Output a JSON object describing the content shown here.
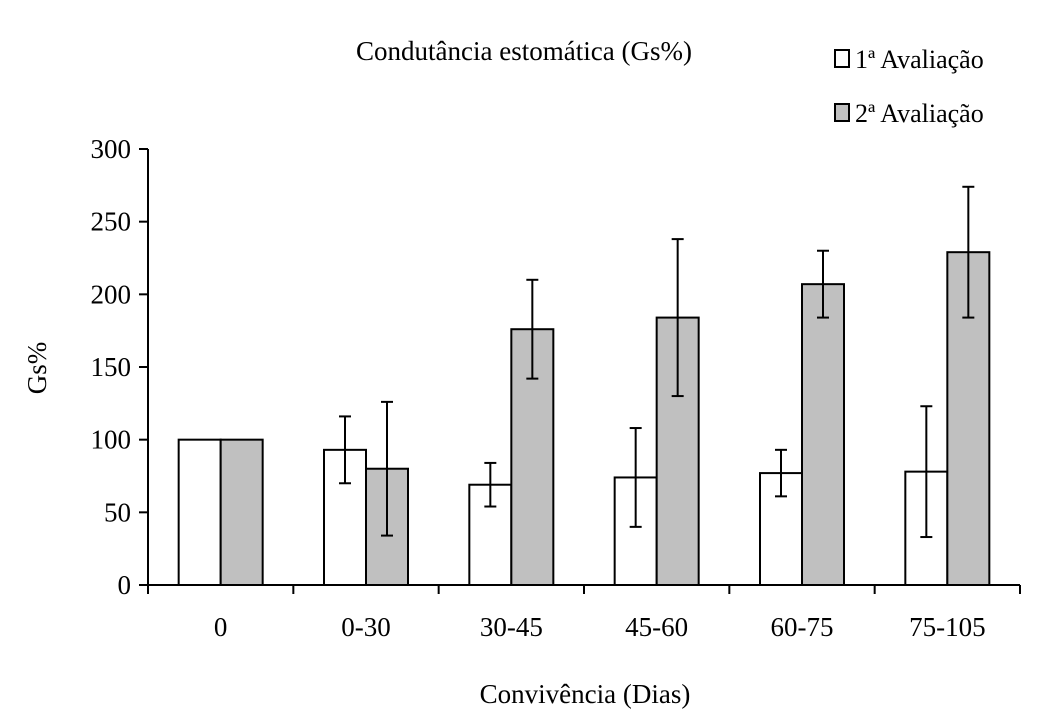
{
  "chart_data": {
    "type": "bar",
    "title": "Condutância estomática (Gs%)",
    "xlabel": "Convivência (Dias)",
    "ylabel": "Gs%",
    "ylim": [
      0,
      300
    ],
    "yticks": [
      0,
      50,
      100,
      150,
      200,
      250,
      300
    ],
    "categories": [
      "0",
      "0-30",
      "30-45",
      "45-60",
      "60-75",
      "75-105"
    ],
    "series": [
      {
        "name": "1ª Avaliação",
        "color": "#ffffff",
        "values": [
          100,
          93,
          69,
          74,
          77,
          78
        ],
        "error": [
          0,
          23,
          15,
          34,
          16,
          45
        ]
      },
      {
        "name": "2ª Avaliação",
        "color": "#c0c0c0",
        "values": [
          100,
          80,
          176,
          184,
          207,
          229
        ],
        "error": [
          0,
          46,
          34,
          54,
          23,
          45
        ]
      }
    ],
    "grid": false,
    "legend_position": "top-right"
  }
}
